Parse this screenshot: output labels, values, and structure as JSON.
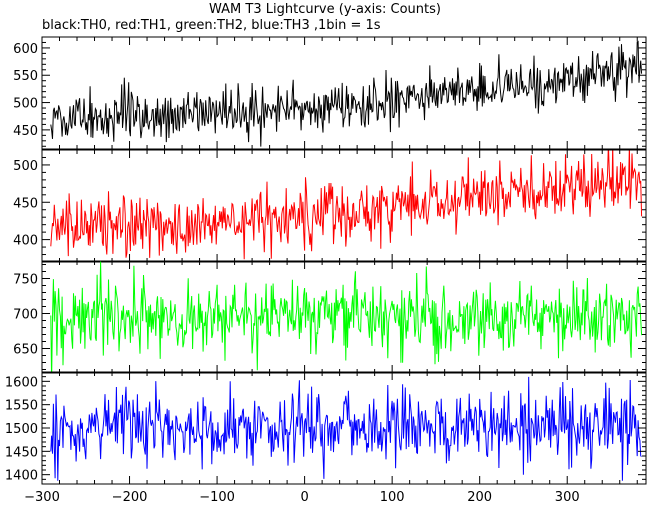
{
  "chart_title": "WAM T3 Lightcurve (y-axis: Counts)",
  "chart_subtitle": "black:TH0, red:TH1, green:TH2, blue:TH3 ,1bin = 1s",
  "chart_data": [
    {
      "type": "line",
      "title": "WAM T3 Lightcurve (y-axis: Counts)",
      "subtitle": "black:TH0, red:TH1, green:TH2, blue:TH3 ,1bin = 1s",
      "ylabel": "Counts",
      "xlim": [
        -300,
        390
      ],
      "ylim": [
        415,
        620
      ],
      "yticks": [
        450,
        500,
        550,
        600
      ],
      "series": [
        {
          "name": "TH0",
          "color": "#000000",
          "trend": {
            "x": [
              -290,
              -100,
              0,
              100,
              200,
              300,
              385
            ],
            "y": [
              470,
              480,
              490,
              505,
              525,
              545,
              565
            ]
          },
          "noise_sd": 22
        }
      ]
    },
    {
      "type": "line",
      "xlim": [
        -300,
        390
      ],
      "ylim": [
        370,
        520
      ],
      "yticks": [
        400,
        450,
        500
      ],
      "series": [
        {
          "name": "TH1",
          "color": "#ff0000",
          "trend": {
            "x": [
              -290,
              -100,
              0,
              100,
              200,
              300,
              385
            ],
            "y": [
              415,
              425,
              432,
              442,
              455,
              470,
              482
            ]
          },
          "noise_sd": 20
        }
      ]
    },
    {
      "type": "line",
      "xlim": [
        -300,
        390
      ],
      "ylim": [
        615,
        775
      ],
      "yticks": [
        650,
        700,
        750
      ],
      "series": [
        {
          "name": "TH2",
          "color": "#00ff00",
          "trend": {
            "x": [
              -290,
              0,
              385
            ],
            "y": [
              690,
              692,
              695
            ]
          },
          "noise_sd": 26
        }
      ]
    },
    {
      "type": "line",
      "xlim": [
        -300,
        390
      ],
      "ylim": [
        1380,
        1620
      ],
      "yticks": [
        1400,
        1450,
        1500,
        1550,
        1600
      ],
      "series": [
        {
          "name": "TH3",
          "color": "#0000ff",
          "trend": {
            "x": [
              -290,
              0,
              385
            ],
            "y": [
              1500,
              1502,
              1505
            ]
          },
          "noise_sd": 38
        }
      ]
    }
  ],
  "xaxis": {
    "ticks": [
      -300,
      -200,
      -100,
      0,
      100,
      200,
      300
    ],
    "labels": [
      "−300",
      "−200",
      "−100",
      "0",
      "100",
      "200",
      "300"
    ]
  }
}
